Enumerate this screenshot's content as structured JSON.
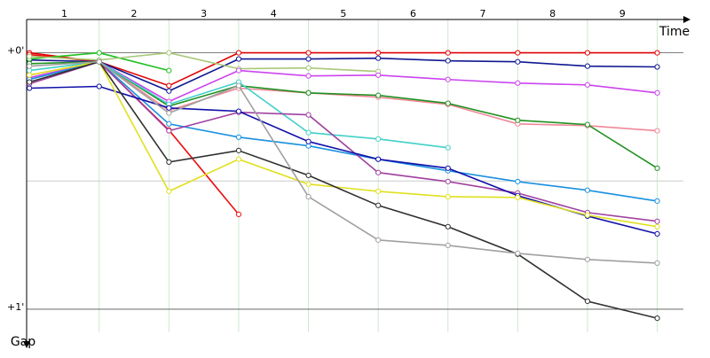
{
  "chart_data": {
    "type": "line",
    "x_label": "Time",
    "y_label": "Gap",
    "categories": [
      "1",
      "2",
      "3",
      "4",
      "5",
      "6",
      "7",
      "8",
      "9"
    ],
    "x": [
      0,
      1,
      2,
      3,
      4,
      5,
      6,
      7,
      8,
      9
    ],
    "xlim": [
      -0.04,
      9.68
    ],
    "ylim": [
      -0.13,
      1.09
    ],
    "yticks": [
      {
        "value": 0,
        "label": "+0'"
      },
      {
        "value": 1,
        "label": "+1'"
      }
    ],
    "grid": true,
    "series": [
      {
        "color": "#e00000",
        "values": [
          0,
          0.035,
          0.128,
          0,
          0,
          0,
          0,
          0,
          0,
          0
        ]
      },
      {
        "color": "#ee1010",
        "values": [
          0.007,
          0.035,
          0.301,
          0.63,
          null,
          null,
          null,
          null,
          null,
          null
        ]
      },
      {
        "color": "#101890",
        "values": [
          0.028,
          0.035,
          0.149,
          0.024,
          0.024,
          0.021,
          0.031,
          0.035,
          0.052,
          0.055
        ]
      },
      {
        "color": "#20c020",
        "values": [
          0.024,
          0,
          0.069,
          null,
          null,
          null,
          null,
          null,
          null,
          null
        ]
      },
      {
        "color": "#a8c878",
        "values": [
          0.014,
          0.028,
          0,
          0.062,
          0.059,
          0.073,
          null,
          null,
          null,
          null
        ]
      },
      {
        "color": "#cc44ee",
        "values": [
          0.097,
          0.035,
          0.19,
          0.069,
          0.09,
          0.087,
          0.104,
          0.118,
          0.125,
          0.156
        ]
      },
      {
        "color": "#f08898",
        "values": [
          0.087,
          0.035,
          0.225,
          0.138,
          0.156,
          0.173,
          0.201,
          0.277,
          0.284,
          0.304
        ]
      },
      {
        "color": "#209020",
        "values": [
          0.042,
          0.035,
          0.208,
          0.128,
          0.156,
          0.166,
          0.197,
          0.263,
          0.28,
          0.45
        ]
      },
      {
        "color": "#40d0c8",
        "values": [
          0.069,
          0.035,
          0.201,
          0.114,
          0.311,
          0.336,
          0.37,
          null,
          null,
          null
        ]
      },
      {
        "color": "#1890e0",
        "values": [
          0.104,
          0.035,
          0.277,
          0.329,
          0.363,
          0.415,
          0.46,
          0.502,
          0.536,
          0.578
        ]
      },
      {
        "color": "#a040a0",
        "values": [
          0.121,
          0.035,
          0.304,
          0.232,
          0.242,
          0.467,
          0.502,
          0.547,
          0.623,
          0.657
        ]
      },
      {
        "color": "#1010a8",
        "values": [
          0.138,
          0.131,
          0.215,
          0.228,
          0.346,
          0.415,
          0.45,
          0.557,
          0.637,
          0.706
        ]
      },
      {
        "color": "#e0e020",
        "values": [
          0.087,
          0.035,
          0.54,
          0.415,
          0.512,
          0.54,
          0.561,
          0.564,
          0.633,
          0.678
        ]
      },
      {
        "color": "#303030",
        "values": [
          0.114,
          0.035,
          0.426,
          0.381,
          0.478,
          0.595,
          0.678,
          0.785,
          0.969,
          1.035
        ]
      },
      {
        "color": "#a0a0a0",
        "values": [
          0.052,
          0.035,
          0.235,
          0.128,
          0.561,
          0.73,
          0.751,
          0.782,
          0.806,
          0.82
        ]
      }
    ]
  }
}
